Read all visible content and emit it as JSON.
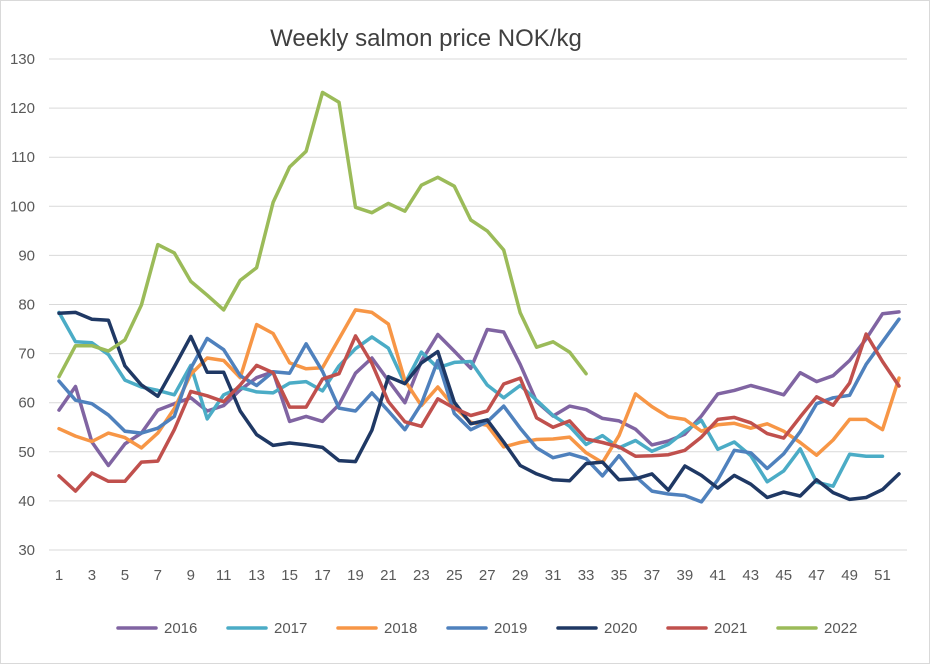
{
  "chart_data": {
    "type": "line",
    "title": "Weekly salmon price NOK/kg",
    "xlabel": "",
    "ylabel": "",
    "ylim": [
      30,
      130
    ],
    "xlim": [
      1,
      52
    ],
    "yticks": [
      30,
      40,
      50,
      60,
      70,
      80,
      90,
      100,
      110,
      120,
      130
    ],
    "xticks": [
      1,
      3,
      5,
      7,
      9,
      11,
      13,
      15,
      17,
      19,
      21,
      23,
      25,
      27,
      29,
      31,
      33,
      35,
      37,
      39,
      41,
      43,
      45,
      47,
      49,
      51
    ],
    "grid": "horizontal",
    "legend_position": "bottom",
    "series": [
      {
        "name": "2016",
        "color": "#8064a2",
        "x": [
          1,
          2,
          3,
          4,
          5,
          6,
          7,
          8,
          9,
          10,
          11,
          12,
          13,
          14,
          15,
          16,
          17,
          18,
          19,
          20,
          21,
          22,
          23,
          24,
          25,
          26,
          27,
          28,
          29,
          30,
          31,
          32,
          33,
          34,
          35,
          36,
          37,
          38,
          39,
          40,
          41,
          42,
          43,
          44,
          45,
          46,
          47,
          48,
          49,
          50,
          51,
          52
        ],
        "values": [
          58.5,
          63.3,
          52.0,
          47.2,
          51.6,
          53.8,
          58.5,
          59.8,
          61.0,
          58.3,
          59.4,
          62.6,
          65.1,
          66.3,
          56.2,
          57.2,
          56.2,
          59.6,
          66.0,
          69.1,
          64.5,
          60.0,
          68.5,
          73.9,
          70.5,
          67.0,
          74.9,
          74.4,
          67.8,
          60.2,
          57.3,
          59.3,
          58.6,
          56.8,
          56.3,
          54.6,
          51.4,
          52.2,
          53.6,
          57.3,
          61.8,
          62.5,
          63.5,
          62.6,
          61.6,
          66.1,
          64.3,
          65.5,
          68.6,
          73.0,
          78.1,
          78.5
        ]
      },
      {
        "name": "2017",
        "color": "#4bacc6",
        "x": [
          1,
          2,
          3,
          4,
          5,
          6,
          7,
          8,
          9,
          10,
          11,
          12,
          13,
          14,
          15,
          16,
          17,
          18,
          19,
          20,
          21,
          22,
          23,
          24,
          25,
          26,
          27,
          28,
          29,
          30,
          31,
          32,
          33,
          34,
          35,
          36,
          37,
          38,
          39,
          40,
          41,
          42,
          43,
          44,
          45,
          46,
          47,
          48,
          49,
          50,
          51,
          52
        ],
        "values": [
          78.4,
          72.4,
          72.2,
          69.8,
          64.6,
          63.2,
          62.5,
          61.6,
          67.6,
          56.7,
          61.6,
          63.1,
          62.2,
          62.0,
          64.0,
          64.3,
          62.4,
          67.5,
          71.0,
          73.4,
          71.1,
          63.9,
          70.3,
          67.1,
          68.2,
          68.4,
          63.6,
          61.0,
          63.5,
          60.5,
          57.4,
          55.2,
          51.5,
          53.3,
          50.8,
          52.3,
          50.1,
          51.5,
          54.2,
          56.4,
          50.5,
          52.0,
          49.2,
          43.9,
          46.1,
          50.6,
          43.8,
          43.0,
          49.5,
          49.1,
          49.1,
          null
        ]
      },
      {
        "name": "2018",
        "color": "#f79646",
        "x": [
          1,
          2,
          3,
          4,
          5,
          6,
          7,
          8,
          9,
          10,
          11,
          12,
          13,
          14,
          15,
          16,
          17,
          18,
          19,
          20,
          21,
          22,
          23,
          24,
          25,
          26,
          27,
          28,
          29,
          30,
          31,
          32,
          33,
          34,
          35,
          36,
          37,
          38,
          39,
          40,
          41,
          42,
          43,
          44,
          45,
          46,
          47,
          48,
          49,
          50,
          51,
          52
        ],
        "values": [
          54.7,
          53.2,
          52.1,
          53.8,
          52.9,
          50.8,
          53.8,
          58.8,
          65.8,
          69.1,
          68.6,
          65.1,
          75.9,
          74.1,
          68.1,
          66.9,
          67.1,
          73.0,
          78.9,
          78.4,
          76.0,
          64.5,
          59.4,
          63.2,
          59.1,
          56.0,
          55.4,
          51.0,
          51.9,
          52.5,
          52.6,
          53.0,
          49.8,
          47.8,
          53.3,
          61.8,
          59.2,
          57.1,
          56.6,
          54.2,
          55.5,
          55.8,
          54.8,
          55.7,
          54.2,
          51.9,
          49.3,
          52.4,
          56.6,
          56.6,
          54.5,
          65.0
        ]
      },
      {
        "name": "2019",
        "color": "#4f81bd",
        "x": [
          1,
          2,
          3,
          4,
          5,
          6,
          7,
          8,
          9,
          10,
          11,
          12,
          13,
          14,
          15,
          16,
          17,
          18,
          19,
          20,
          21,
          22,
          23,
          24,
          25,
          26,
          27,
          28,
          29,
          30,
          31,
          32,
          33,
          34,
          35,
          36,
          37,
          38,
          39,
          40,
          41,
          42,
          43,
          44,
          45,
          46,
          47,
          48,
          49,
          50,
          51,
          52
        ],
        "values": [
          64.4,
          60.5,
          59.8,
          57.5,
          54.2,
          53.8,
          54.8,
          57.2,
          67.0,
          73.1,
          70.8,
          65.5,
          63.5,
          66.3,
          66.0,
          72.0,
          66.4,
          58.9,
          58.3,
          62.0,
          58.3,
          54.5,
          59.8,
          68.6,
          57.8,
          54.5,
          56.1,
          59.3,
          54.8,
          50.8,
          48.8,
          49.6,
          48.6,
          45.1,
          49.2,
          45.0,
          42.0,
          41.4,
          41.1,
          39.8,
          44.3,
          50.3,
          49.8,
          46.6,
          49.6,
          54.1,
          59.8,
          61.0,
          61.5,
          67.8,
          72.4,
          77.0
        ]
      },
      {
        "name": "2020",
        "color": "#1f3864",
        "x": [
          1,
          2,
          3,
          4,
          5,
          6,
          7,
          8,
          9,
          10,
          11,
          12,
          13,
          14,
          15,
          16,
          17,
          18,
          19,
          20,
          21,
          22,
          23,
          24,
          25,
          26,
          27,
          28,
          29,
          30,
          31,
          32,
          33,
          34,
          35,
          36,
          37,
          38,
          39,
          40,
          41,
          42,
          43,
          44,
          45,
          46,
          47,
          48,
          49,
          50,
          51,
          52
        ],
        "values": [
          78.2,
          78.4,
          77.0,
          76.8,
          67.5,
          63.6,
          61.3,
          67.3,
          73.5,
          66.2,
          66.2,
          58.3,
          53.5,
          51.3,
          51.8,
          51.4,
          50.9,
          48.2,
          48.0,
          54.4,
          65.3,
          63.9,
          68.1,
          70.4,
          60.1,
          55.7,
          56.5,
          52.0,
          47.2,
          45.5,
          44.3,
          44.1,
          47.6,
          47.9,
          44.3,
          44.5,
          45.5,
          42.2,
          47.1,
          45.2,
          42.6,
          45.2,
          43.4,
          40.7,
          41.8,
          41.0,
          44.3,
          41.7,
          40.3,
          40.7,
          42.3,
          45.5
        ]
      },
      {
        "name": "2021",
        "color": "#c0504d",
        "x": [
          1,
          2,
          3,
          4,
          5,
          6,
          7,
          8,
          9,
          10,
          11,
          12,
          13,
          14,
          15,
          16,
          17,
          18,
          19,
          20,
          21,
          22,
          23,
          24,
          25,
          26,
          27,
          28,
          29,
          30,
          31,
          32,
          33,
          34,
          35,
          36,
          37,
          38,
          39,
          40,
          41,
          42,
          43,
          44,
          45,
          46,
          47,
          48,
          49,
          50,
          51,
          52
        ],
        "values": [
          45.1,
          42.0,
          45.7,
          44.0,
          44.0,
          47.9,
          48.1,
          54.5,
          62.3,
          61.4,
          60.2,
          63.6,
          67.6,
          66.1,
          59.1,
          59.1,
          64.8,
          65.9,
          73.6,
          68.0,
          60.2,
          56.1,
          55.2,
          60.8,
          58.9,
          57.4,
          58.3,
          63.8,
          65.0,
          56.9,
          55.0,
          56.3,
          52.6,
          51.9,
          51.0,
          49.1,
          49.2,
          49.4,
          50.3,
          53.0,
          56.6,
          57.0,
          55.9,
          53.7,
          52.8,
          57.1,
          61.2,
          59.5,
          64.0,
          74.0,
          68.4,
          63.4
        ]
      },
      {
        "name": "2022",
        "color": "#9bbb59",
        "x": [
          1,
          2,
          3,
          4,
          5,
          6,
          7,
          8,
          9,
          10,
          11,
          12,
          13,
          14,
          15,
          16,
          17,
          18,
          19,
          20,
          21,
          22,
          23,
          24,
          25,
          26,
          27,
          28,
          29,
          30,
          31,
          32,
          33
        ],
        "values": [
          65.3,
          71.6,
          71.6,
          70.5,
          72.8,
          79.9,
          92.2,
          90.5,
          84.7,
          81.9,
          78.9,
          84.9,
          87.5,
          100.8,
          108.0,
          111.2,
          123.2,
          121.2,
          99.8,
          98.7,
          100.6,
          99.0,
          104.3,
          105.9,
          104.1,
          97.2,
          95.0,
          91.1,
          78.3,
          71.3,
          72.4,
          70.3,
          65.9
        ]
      }
    ]
  }
}
